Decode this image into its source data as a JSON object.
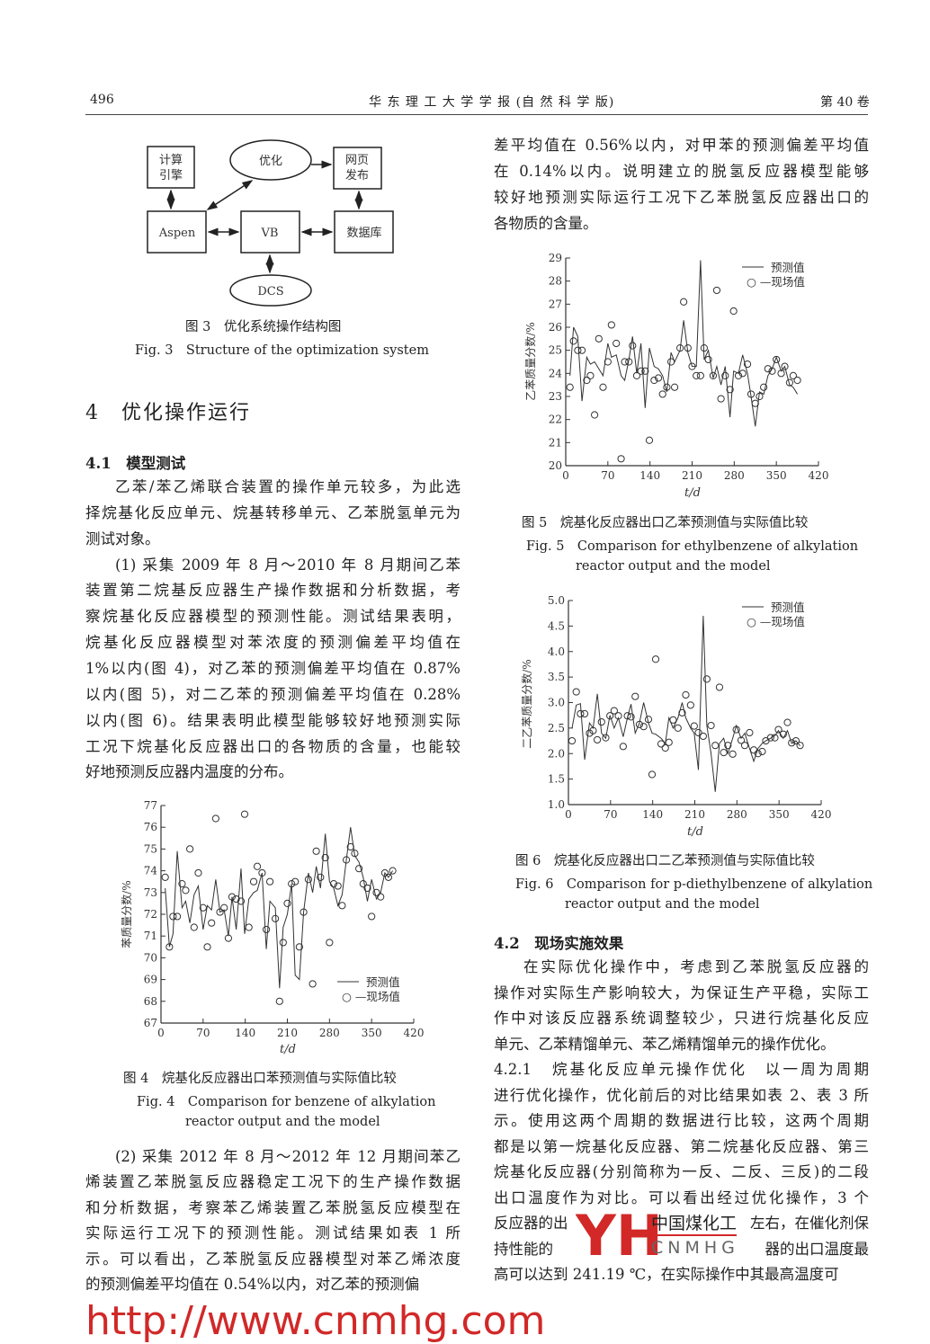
{
  "header": {
    "page_number": "496",
    "journal": "华 东 理 工 大 学 学 报 (自 然 科 学 版)",
    "volume": "第 40 卷"
  },
  "fig3": {
    "nodes": {
      "engine": [
        "计算",
        "引擎"
      ],
      "optimize": "优化",
      "web": [
        "网页",
        "发布"
      ],
      "aspen": "Aspen",
      "vb": "VB",
      "db": "数据库",
      "dcs": "DCS"
    },
    "caption_cn": "图 3　优化系统操作结构图",
    "caption_en": "Fig. 3　Structure of the optimization system"
  },
  "section4": {
    "title": "4　优化操作运行"
  },
  "section41": {
    "title": "4.1　模型测试"
  },
  "left_paragraphs": [
    {
      "indent": true,
      "lines": [
        "乙苯/苯乙烯联合装置的操作单元较多，为此选",
        "择烷基化反应单元、烷基转移单元、乙苯脱氢单元为",
        "测试对象。"
      ]
    },
    {
      "indent": true,
      "lines": [
        "(1) 采集 2009 年 8 月～2010 年 8 月期间乙苯",
        "装置第二烷基反应器生产操作数据和分析数据，考",
        "察烷基化反应器模型的预测性能。测试结果表明，",
        "烷基化反应器模型对苯浓度的预测偏差平均值在",
        "1%以内(图 4)，对乙苯的预测偏差平均值在 0.87%",
        "以内(图 5)，对二乙苯的预测偏差平均值在 0.28%",
        "以内(图 6)。结果表明此模型能够较好地预测实际",
        "工况下烷基化反应器出口的各物质的含量，也能较",
        "好地预测反应器内温度的分布。"
      ]
    },
    {
      "indent": true,
      "lines": [
        "(2) 采集 2012 年 8 月～2012 年 12 月期间苯乙",
        "烯装置乙苯脱氢反应器稳定工况下的生产操作数据",
        "和分析数据，考察苯乙烯装置乙苯脱氢反应模型在",
        "实际运行工况下的预测性能。测试结果如表 1 所",
        "示。可以看出，乙苯脱氢反应器模型对苯乙烯浓度",
        "的预测偏差平均值在 0.54%以内，对乙苯的预测偏"
      ]
    }
  ],
  "right_paragraph_top": {
    "lines": [
      "差平均值在 0.56%以内，对甲苯的预测偏差平均值",
      "在 0.14%以内。说明建立的脱氢反应器模型能够",
      "较好地预测实际运行工况下乙苯脱氢反应器出口的",
      "各物质的含量。"
    ]
  },
  "section42": {
    "title": "4.2　现场实施效果"
  },
  "right_paragraphs": [
    {
      "indent": true,
      "lines": [
        "在实际优化操作中，考虑到乙苯脱氢反应器的",
        "操作对实际生产影响较大，为保证生产平稳，实际工",
        "作中对该反应器系统调整较少，只进行烷基化反应",
        "单元、乙苯精馏单元、苯乙烯精馏单元的操作优化。"
      ]
    },
    {
      "indent": false,
      "lines": [
        "4.2.1　烷基化反应单元操作优化　以一周为周期",
        "进行优化操作，优化前后的对比结果如表 2、表 3 所",
        "示。使用这两个周期的数据进行比较，这两个周期",
        "都是以第一烷基化反应器、第二烷基化反应器、第三",
        "烷基化反应器(分别简称为一反、二反、三反)的二段",
        "出口温度作为对比。可以看出经过优化操作，3 个",
        {
          "l": "反应器的出",
          "r": "左右，在催化剂保"
        },
        {
          "l": "持性能的",
          "r": "器的出口温度最"
        },
        "高可以达到 241.19 ℃，在实际操作中其最高温度可"
      ]
    }
  ],
  "watermark": {
    "url_text": "http://www.cnmhg.com",
    "logo_letters": "YH",
    "logo_cn": "中国煤化工",
    "logo_en": "CNMHG",
    "color": "#d22828"
  },
  "chart_data": [
    {
      "id": "fig4",
      "type": "line+scatter",
      "caption_cn": "图 4　烷基化反应器出口苯预测值与实际值比较",
      "caption_en_1": "Fig. 4　Comparison for benzene of alkylation",
      "caption_en_2": "reactor output and the model",
      "xlabel": "t/d",
      "ylabel": "苯质量分数/%",
      "xlim": [
        0,
        420
      ],
      "ylim": [
        67,
        77
      ],
      "xticks": [
        "0",
        "70",
        "140",
        "210",
        "280",
        "350",
        "420"
      ],
      "yticks": [
        "67",
        "68",
        "69",
        "70",
        "71",
        "72",
        "73",
        "74",
        "75",
        "76",
        "77"
      ],
      "legend": {
        "line": "预测值",
        "marker": "○ —现场值",
        "position": "bottom-right"
      },
      "x": [
        7,
        14,
        20,
        27,
        35,
        41,
        48,
        55,
        62,
        70,
        77,
        84,
        91,
        98,
        105,
        112,
        118,
        125,
        133,
        139,
        146,
        154,
        160,
        168,
        175,
        181,
        190,
        197,
        203,
        210,
        217,
        223,
        230,
        237,
        245,
        252,
        258,
        265,
        273,
        280,
        287,
        294,
        301,
        308,
        315,
        322,
        329,
        336,
        343,
        350,
        358,
        365,
        372,
        378,
        385
      ],
      "series": [
        {
          "name": "预测值",
          "style": "line",
          "values": [
            73.2,
            70.5,
            71.1,
            74.9,
            72.3,
            72.6,
            71.6,
            72.9,
            73.3,
            71.3,
            72.4,
            72.2,
            73.6,
            72.1,
            72.2,
            71.0,
            72.8,
            71.3,
            74.1,
            71.1,
            72.7,
            73.0,
            73.1,
            73.9,
            70.4,
            72.6,
            72.3,
            68.6,
            71.4,
            72.0,
            73.4,
            69.2,
            69.0,
            72.1,
            73.9,
            73.0,
            74.2,
            73.2,
            75.7,
            73.5,
            73.2,
            72.4,
            72.9,
            74.5,
            76.0,
            74.7,
            74.4,
            73.7,
            72.6,
            73.6,
            72.7,
            73.0,
            73.9,
            73.7,
            74.0
          ]
        },
        {
          "name": "现场值",
          "style": "circle",
          "values": [
            73.7,
            70.5,
            71.9,
            71.9,
            73.4,
            73.1,
            75.0,
            71.4,
            73.9,
            72.3,
            70.5,
            71.6,
            76.4,
            72.1,
            72.3,
            70.9,
            72.8,
            72.7,
            72.6,
            76.6,
            71.4,
            73.5,
            74.2,
            73.9,
            71.3,
            73.5,
            71.8,
            68.0,
            70.7,
            72.5,
            73.4,
            73.5,
            70.5,
            72.1,
            73.6,
            68.8,
            74.9,
            73.7,
            74.6,
            70.7,
            73.4,
            73.3,
            72.4,
            74.5,
            75.1,
            74.8,
            74.1,
            73.4,
            73.2,
            71.9,
            73.0,
            72.8,
            73.9,
            73.7,
            74.0
          ]
        }
      ]
    },
    {
      "id": "fig5",
      "type": "line+scatter",
      "caption_cn": "图 5　烷基化反应器出口乙苯预测值与实际值比较",
      "caption_en_1": "Fig. 5　Comparison for ethylbenzene of alkylation",
      "caption_en_2": "reactor output and the model",
      "xlabel": "t/d",
      "ylabel": "乙苯质量分数/%",
      "xlim": [
        0,
        420
      ],
      "ylim": [
        20,
        29
      ],
      "xticks": [
        "0",
        "70",
        "140",
        "210",
        "280",
        "350",
        "420"
      ],
      "yticks": [
        "20",
        "21",
        "22",
        "23",
        "24",
        "25",
        "26",
        "27",
        "28",
        "29"
      ],
      "legend": {
        "line": "预测值",
        "marker": "○ —现场值",
        "position": "top-right"
      },
      "x": [
        7,
        13,
        20,
        27,
        35,
        41,
        48,
        55,
        62,
        70,
        76,
        84,
        92,
        98,
        105,
        111,
        118,
        125,
        132,
        139,
        147,
        154,
        161,
        168,
        175,
        181,
        190,
        196,
        203,
        210,
        217,
        224,
        230,
        237,
        245,
        251,
        258,
        265,
        273,
        279,
        287,
        294,
        302,
        308,
        315,
        322,
        329,
        336,
        343,
        350,
        358,
        364,
        372,
        378,
        385
      ],
      "series": [
        {
          "name": "预测值",
          "style": "line",
          "values": [
            23.9,
            26.0,
            25.6,
            22.8,
            24.7,
            24.4,
            24.5,
            24.2,
            23.9,
            25.3,
            24.7,
            24.8,
            23.9,
            23.7,
            24.6,
            25.6,
            24.0,
            25.3,
            22.5,
            25.1,
            24.3,
            24.2,
            23.9,
            23.2,
            24.9,
            24.5,
            25.0,
            26.3,
            24.9,
            24.3,
            24.3,
            28.9,
            24.6,
            25.0,
            23.8,
            24.3,
            23.5,
            24.3,
            22.1,
            24.1,
            24.0,
            24.8,
            24.0,
            23.0,
            21.7,
            23.2,
            23.1,
            23.9,
            24.2,
            24.7,
            24.1,
            24.3,
            23.5,
            23.4,
            23.1
          ]
        },
        {
          "name": "现场值",
          "style": "circle",
          "values": [
            23.4,
            25.4,
            25.0,
            25.0,
            23.7,
            23.9,
            22.2,
            25.5,
            23.4,
            24.5,
            26.1,
            25.3,
            20.3,
            24.5,
            24.5,
            25.2,
            23.9,
            24.1,
            24.1,
            21.1,
            23.7,
            23.8,
            23.1,
            23.4,
            24.5,
            23.4,
            25.1,
            27.1,
            25.1,
            24.3,
            23.9,
            23.9,
            25.1,
            24.6,
            23.9,
            27.6,
            22.9,
            23.9,
            23.3,
            26.7,
            23.9,
            24.0,
            24.4,
            23.1,
            22.7,
            23.0,
            23.4,
            24.2,
            24.1,
            24.6,
            24.0,
            24.3,
            23.6,
            23.9,
            23.7
          ]
        }
      ]
    },
    {
      "id": "fig6",
      "type": "line+scatter",
      "caption_cn": "图 6　烷基化反应器出口二乙苯预测值与实际值比较",
      "caption_en_1": "Fig. 6　Comparison for p-diethylbenzene of alkylation",
      "caption_en_2": "reactor output and the model",
      "xlabel": "t/d",
      "ylabel": "二乙苯质量分数/%",
      "xlim": [
        0,
        420
      ],
      "ylim": [
        1.0,
        5.0
      ],
      "xticks": [
        "0",
        "70",
        "140",
        "210",
        "280",
        "350",
        "420"
      ],
      "yticks": [
        "1.0",
        "1.5",
        "2.0",
        "2.5",
        "3.0",
        "3.5",
        "4.0",
        "4.5",
        "5.0"
      ],
      "legend": {
        "line": "预测值",
        "marker": "○ —现场值",
        "position": "top-right"
      },
      "x": [
        6,
        13,
        20,
        27,
        35,
        41,
        48,
        55,
        62,
        69,
        76,
        83,
        91,
        98,
        104,
        111,
        118,
        125,
        133,
        139,
        145,
        154,
        161,
        167,
        174,
        182,
        189,
        195,
        203,
        209,
        216,
        224,
        230,
        237,
        244,
        251,
        258,
        265,
        273,
        279,
        287,
        293,
        301,
        308,
        315,
        322,
        328,
        336,
        343,
        349,
        357,
        364,
        371,
        378,
        385
      ],
      "series": [
        {
          "name": "预测值",
          "style": "line",
          "values": [
            2.5,
            2.95,
            2.98,
            1.88,
            2.6,
            2.5,
            3.17,
            2.4,
            2.3,
            2.75,
            2.5,
            2.7,
            2.33,
            2.7,
            2.97,
            2.4,
            2.6,
            3.0,
            2.6,
            2.4,
            2.38,
            2.3,
            2.2,
            2.7,
            2.5,
            2.7,
            3.0,
            2.7,
            2.5,
            2.4,
            1.68,
            4.7,
            2.55,
            2.0,
            1.25,
            2.2,
            2.3,
            2.0,
            2.3,
            2.55,
            2.3,
            2.4,
            2.1,
            1.85,
            2.1,
            2.2,
            2.25,
            2.3,
            2.35,
            2.45,
            2.3,
            2.45,
            2.2,
            2.25,
            2.15
          ]
        },
        {
          "name": "现场值",
          "style": "circle",
          "values": [
            2.25,
            3.21,
            2.78,
            2.78,
            2.4,
            2.45,
            2.27,
            2.62,
            2.31,
            2.74,
            2.84,
            2.74,
            2.14,
            2.74,
            2.72,
            3.12,
            2.57,
            2.53,
            2.67,
            1.59,
            3.85,
            2.19,
            2.11,
            2.22,
            2.66,
            2.5,
            2.8,
            3.15,
            2.95,
            2.54,
            2.41,
            2.34,
            3.46,
            2.55,
            2.16,
            3.3,
            2.02,
            2.16,
            1.99,
            2.47,
            2.26,
            2.16,
            2.41,
            2.07,
            2.0,
            2.04,
            2.25,
            2.31,
            2.31,
            2.47,
            2.38,
            2.61,
            2.21,
            2.25,
            2.16
          ]
        }
      ]
    }
  ]
}
